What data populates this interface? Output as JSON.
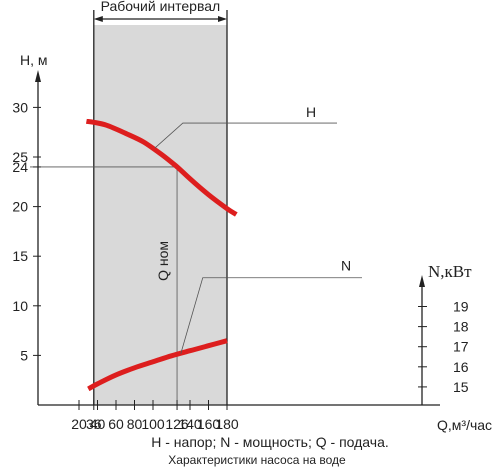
{
  "colors": {
    "curve": "#dd1e1e",
    "working_band": "#d9d9d9",
    "axis": "#222222"
  },
  "chart_data": {
    "type": "line",
    "working_interval_label": "Рабочий интервал",
    "working_interval": [
      36,
      180
    ],
    "x_axis": {
      "label": "Q,м³/час",
      "ticks": [
        20,
        36,
        40,
        60,
        80,
        100,
        126,
        140,
        160,
        180
      ],
      "xlim": [
        -20,
        200
      ]
    },
    "y_left": {
      "label": "Н, м",
      "ticks": [
        5,
        10,
        15,
        20,
        24,
        25,
        30
      ],
      "ylim": [
        0,
        33
      ]
    },
    "y_right": {
      "label": "N,кВт",
      "ticks": [
        15,
        16,
        17,
        18,
        19
      ],
      "ylim": [
        12.95,
        20.3
      ]
    },
    "series": [
      {
        "name": "Н",
        "axis": "left",
        "x": [
          28,
          36,
          50,
          70,
          90,
          110,
          126,
          140,
          160,
          180,
          190
        ],
        "y": [
          28.6,
          28.5,
          28.2,
          27.4,
          26.5,
          25.2,
          24.0,
          22.8,
          21.2,
          19.8,
          19.2
        ]
      },
      {
        "name": "N",
        "axis": "right",
        "x": [
          30,
          40,
          60,
          80,
          100,
          120,
          140,
          160,
          180
        ],
        "y": [
          14.9,
          15.15,
          15.6,
          15.95,
          16.25,
          16.55,
          16.8,
          17.05,
          17.3
        ]
      }
    ],
    "nominal": {
      "label": "Q ном",
      "x": 126,
      "y": 24
    },
    "caption": "Н - напор; N - мощность; Q - подача.",
    "subcaption": "Характеристики насоса на воде"
  }
}
